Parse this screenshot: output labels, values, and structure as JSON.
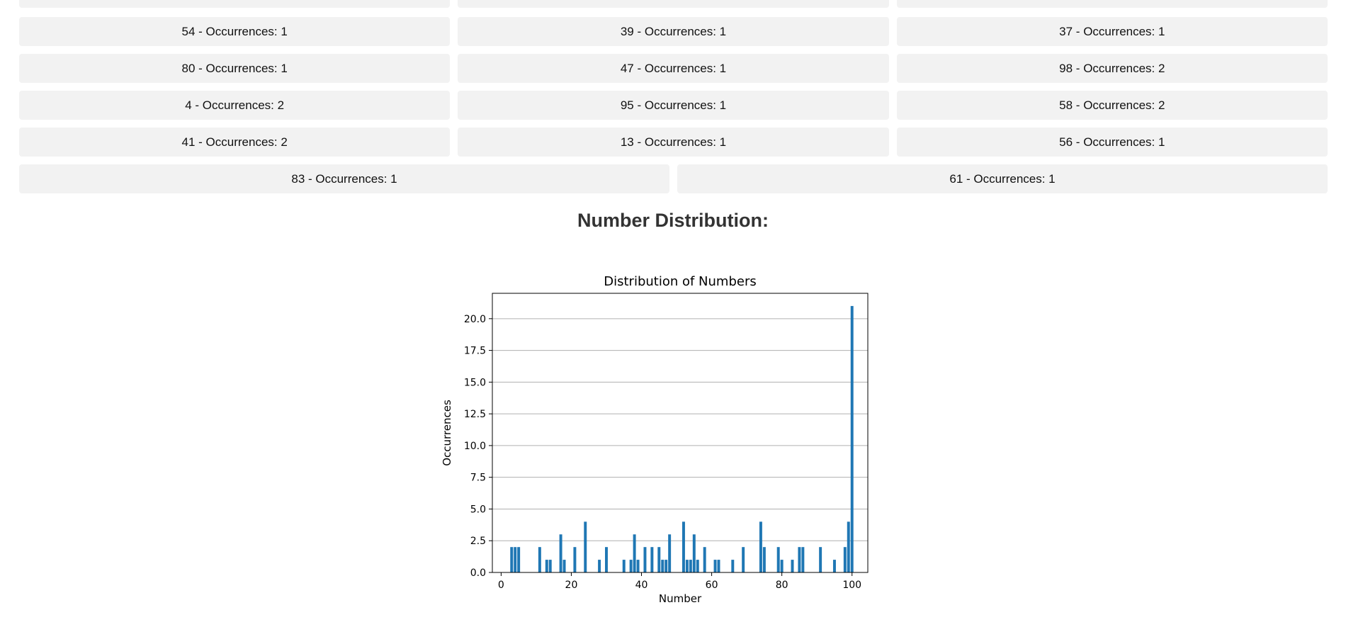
{
  "cards": {
    "top_partial": [
      "",
      "",
      ""
    ],
    "rows3": [
      [
        "54 - Occurrences: 1",
        "39 - Occurrences: 1",
        "37 - Occurrences: 1"
      ],
      [
        "80 - Occurrences: 1",
        "47 - Occurrences: 1",
        "98 - Occurrences: 2"
      ],
      [
        "4 - Occurrences: 2",
        "95 - Occurrences: 1",
        "58 - Occurrences: 2"
      ],
      [
        "41 - Occurrences: 2",
        "13 - Occurrences: 1",
        "56 - Occurrences: 1"
      ]
    ],
    "row2": [
      "83 - Occurrences: 1",
      "61 - Occurrences: 1"
    ]
  },
  "section_title": "Number Distribution:",
  "chart_data": {
    "type": "bar",
    "title": "Distribution of Numbers",
    "xlabel": "Number",
    "ylabel": "Occurrences",
    "xlim": [
      -2.5,
      104.5
    ],
    "ylim": [
      0,
      22
    ],
    "xticks": [
      0,
      20,
      40,
      60,
      80,
      100
    ],
    "yticks": [
      0,
      2.5,
      5,
      7.5,
      10,
      12.5,
      15,
      17.5,
      20
    ],
    "ytick_labels": [
      "0.0",
      "2.5",
      "5.0",
      "7.5",
      "10.0",
      "12.5",
      "15.0",
      "17.5",
      "20.0"
    ],
    "grid": "horizontal",
    "bar_color": "#1f77b4",
    "x": [
      3,
      4,
      5,
      11,
      13,
      14,
      17,
      18,
      21,
      24,
      28,
      30,
      35,
      37,
      38,
      39,
      41,
      43,
      45,
      46,
      47,
      48,
      52,
      53,
      54,
      55,
      56,
      58,
      61,
      62,
      66,
      69,
      74,
      75,
      79,
      80,
      83,
      85,
      86,
      91,
      95,
      98,
      99,
      100
    ],
    "values": [
      2,
      2,
      2,
      2,
      1,
      1,
      3,
      1,
      2,
      4,
      1,
      2,
      1,
      1,
      3,
      1,
      2,
      2,
      2,
      1,
      1,
      3,
      4,
      1,
      1,
      3,
      1,
      2,
      1,
      1,
      1,
      2,
      4,
      2,
      2,
      1,
      1,
      2,
      2,
      2,
      1,
      2,
      4,
      21
    ]
  }
}
